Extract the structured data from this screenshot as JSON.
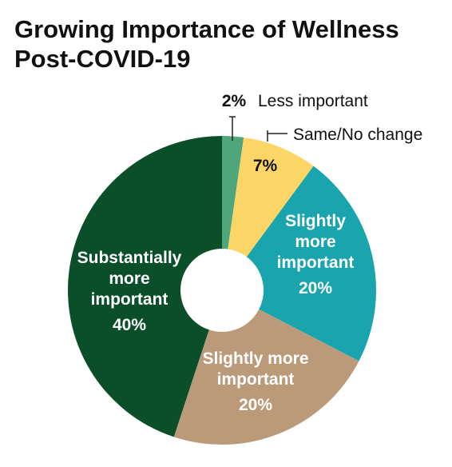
{
  "chart_data": {
    "type": "pie",
    "title": "Growing Importance of Wellness\nPost-COVID-19",
    "slices": [
      {
        "label": "Less important",
        "value": 2,
        "value_label": "2%",
        "color": "#4fa57c"
      },
      {
        "label": "Same/No change",
        "value": 7,
        "value_label": "7%",
        "color": "#fbd566"
      },
      {
        "label": "Slightly\nmore\nimportant",
        "value": 20,
        "value_label": "20%",
        "color": "#1aa5ae"
      },
      {
        "label": "Slightly more\nimportant",
        "value": 20,
        "value_label": "20%",
        "color": "#bb9a79"
      },
      {
        "label": "Substantially\nmore\nimportant",
        "value": 40,
        "value_label": "40%",
        "color": "#0b4f2a"
      }
    ]
  }
}
